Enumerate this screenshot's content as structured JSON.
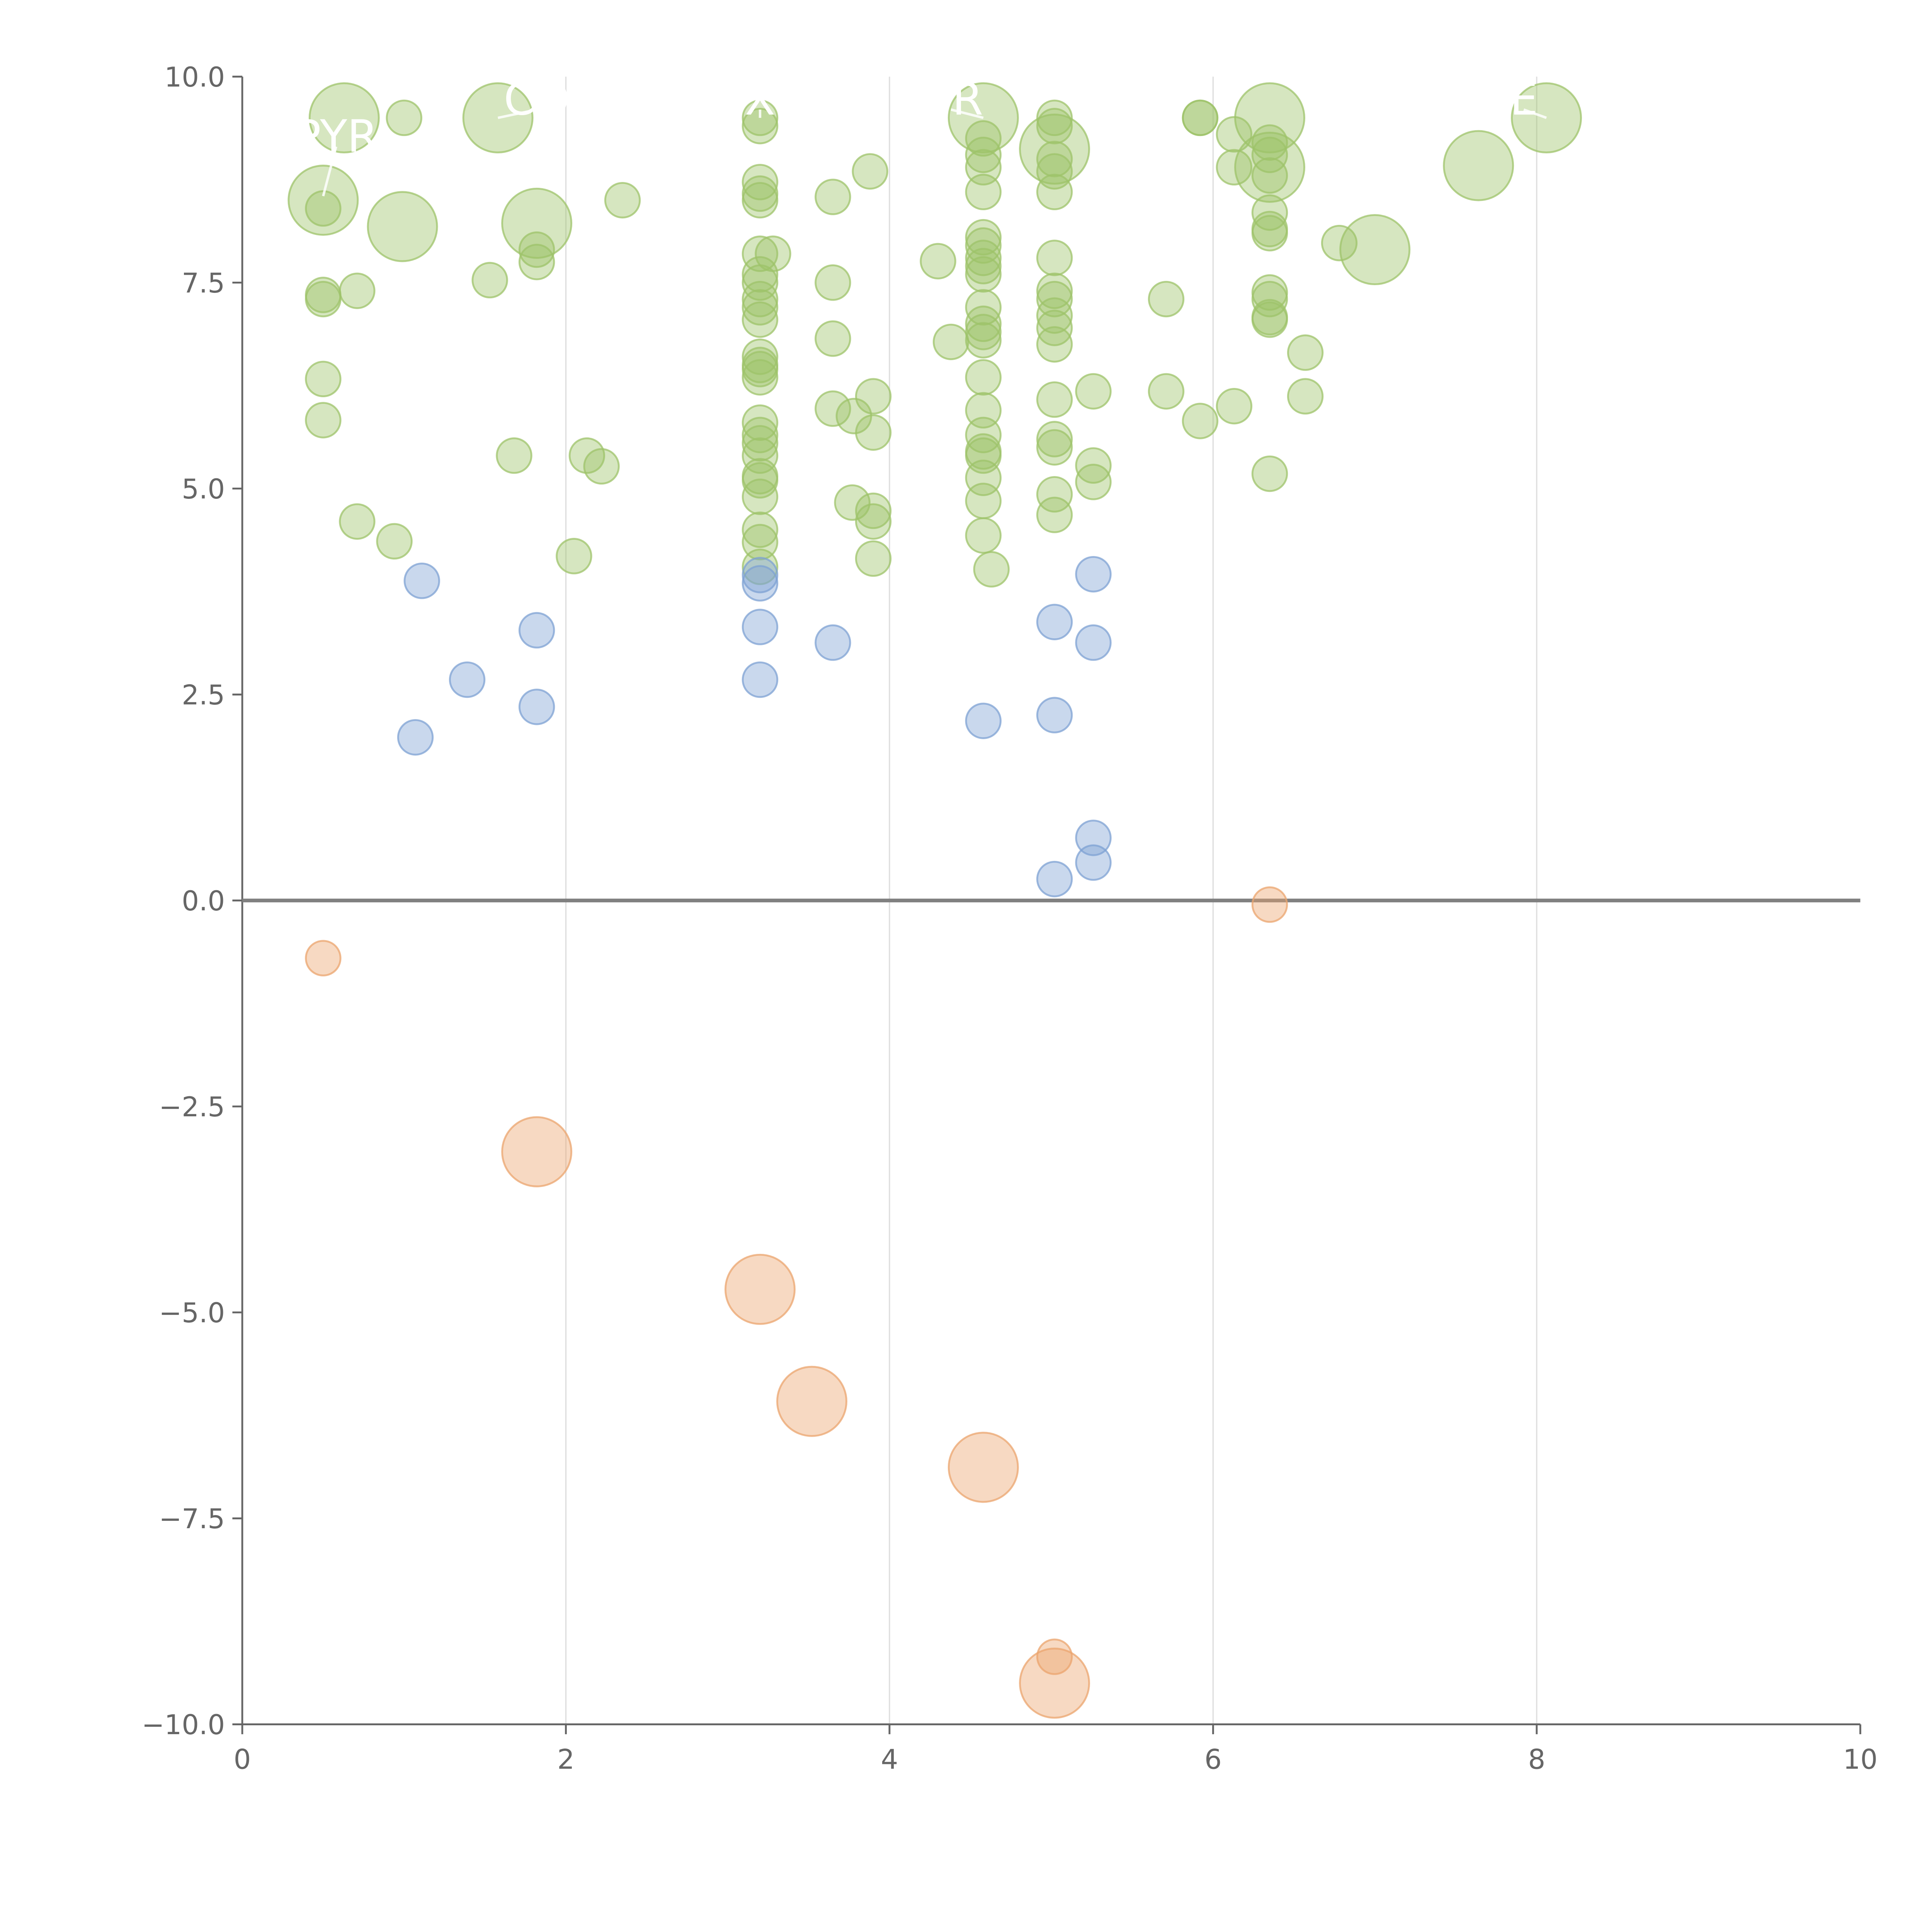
{
  "colors": {
    "positive_high": "#9dc36a",
    "positive_low": "#7ea1d3",
    "negative": "#eba46e",
    "axis": "#666666",
    "grid": "#dddddd",
    "zero_line": "#808080",
    "label": "#ffffff"
  },
  "chart_data": {
    "type": "scatter",
    "title": "",
    "xlabel": "",
    "ylabel": "",
    "xlim": [
      0,
      10
    ],
    "ylim": [
      -10,
      10
    ],
    "x_ticks": [
      "0",
      "2",
      "4",
      "6",
      "8",
      "10"
    ],
    "y_ticks": [
      "−10.0",
      "−7.5",
      "−5.0",
      "−2.5",
      "0.0",
      "2.5",
      "5.0",
      "7.5",
      "10.0"
    ],
    "x_tick_values": [
      0,
      2,
      4,
      6,
      8,
      10
    ],
    "y_tick_values": [
      -10,
      -7.5,
      -5,
      -2.5,
      0,
      2.5,
      5,
      7.5,
      10
    ],
    "vertical_grid": [
      2,
      4,
      6,
      8
    ],
    "horizontal_reference_line": 0,
    "legend": "none",
    "series": [
      {
        "color_role": "positive_high",
        "points": [
          {
            "x": 0.63,
            "y": 9.5,
            "s": 3
          },
          {
            "x": 1.0,
            "y": 9.5,
            "s": 1
          },
          {
            "x": 1.58,
            "y": 9.5,
            "s": 3
          },
          {
            "x": 3.2,
            "y": 9.5,
            "s": 1
          },
          {
            "x": 3.2,
            "y": 9.4,
            "s": 1
          },
          {
            "x": 4.58,
            "y": 9.5,
            "s": 3
          },
          {
            "x": 5.02,
            "y": 9.5,
            "s": 1
          },
          {
            "x": 5.02,
            "y": 9.4,
            "s": 1
          },
          {
            "x": 5.92,
            "y": 9.5,
            "s": 1
          },
          {
            "x": 5.92,
            "y": 9.5,
            "s": 1
          },
          {
            "x": 6.35,
            "y": 9.5,
            "s": 3
          },
          {
            "x": 8.06,
            "y": 9.5,
            "s": 3
          },
          {
            "x": 0.5,
            "y": 8.5,
            "s": 3
          },
          {
            "x": 0.5,
            "y": 8.4,
            "s": 1
          },
          {
            "x": 0.99,
            "y": 8.18,
            "s": 3
          },
          {
            "x": 1.82,
            "y": 8.22,
            "s": 3
          },
          {
            "x": 1.82,
            "y": 7.9,
            "s": 1
          },
          {
            "x": 1.82,
            "y": 7.75,
            "s": 1
          },
          {
            "x": 2.35,
            "y": 8.5,
            "s": 1
          },
          {
            "x": 3.2,
            "y": 8.72,
            "s": 1
          },
          {
            "x": 3.2,
            "y": 8.58,
            "s": 1
          },
          {
            "x": 3.2,
            "y": 8.5,
            "s": 1
          },
          {
            "x": 3.65,
            "y": 8.54,
            "s": 1
          },
          {
            "x": 3.88,
            "y": 8.85,
            "s": 1
          },
          {
            "x": 4.58,
            "y": 9.25,
            "s": 1
          },
          {
            "x": 4.58,
            "y": 9.05,
            "s": 1
          },
          {
            "x": 4.58,
            "y": 8.9,
            "s": 1
          },
          {
            "x": 4.58,
            "y": 8.6,
            "s": 1
          },
          {
            "x": 5.02,
            "y": 9.12,
            "s": 3
          },
          {
            "x": 5.02,
            "y": 9.0,
            "s": 1
          },
          {
            "x": 5.02,
            "y": 8.85,
            "s": 1
          },
          {
            "x": 5.02,
            "y": 8.6,
            "s": 1
          },
          {
            "x": 6.13,
            "y": 9.3,
            "s": 1
          },
          {
            "x": 6.13,
            "y": 8.9,
            "s": 1
          },
          {
            "x": 6.35,
            "y": 9.2,
            "s": 1
          },
          {
            "x": 6.35,
            "y": 9.05,
            "s": 1
          },
          {
            "x": 6.35,
            "y": 8.9,
            "s": 3
          },
          {
            "x": 6.35,
            "y": 8.8,
            "s": 1
          },
          {
            "x": 6.35,
            "y": 8.35,
            "s": 1
          },
          {
            "x": 6.35,
            "y": 8.15,
            "s": 1
          },
          {
            "x": 6.35,
            "y": 8.1,
            "s": 1
          },
          {
            "x": 7.64,
            "y": 8.92,
            "s": 3
          },
          {
            "x": 6.78,
            "y": 7.98,
            "s": 1
          },
          {
            "x": 7.0,
            "y": 7.9,
            "s": 3
          },
          {
            "x": 0.5,
            "y": 7.35,
            "s": 1
          },
          {
            "x": 0.5,
            "y": 7.3,
            "s": 1
          },
          {
            "x": 0.71,
            "y": 7.4,
            "s": 1
          },
          {
            "x": 1.53,
            "y": 7.53,
            "s": 1
          },
          {
            "x": 3.2,
            "y": 7.85,
            "s": 1
          },
          {
            "x": 3.28,
            "y": 7.85,
            "s": 1
          },
          {
            "x": 3.2,
            "y": 7.6,
            "s": 1
          },
          {
            "x": 3.2,
            "y": 7.5,
            "s": 1
          },
          {
            "x": 3.2,
            "y": 7.3,
            "s": 1
          },
          {
            "x": 3.2,
            "y": 7.2,
            "s": 1
          },
          {
            "x": 3.2,
            "y": 7.05,
            "s": 1
          },
          {
            "x": 3.2,
            "y": 6.6,
            "s": 1
          },
          {
            "x": 3.2,
            "y": 6.5,
            "s": 1
          },
          {
            "x": 3.2,
            "y": 6.45,
            "s": 1
          },
          {
            "x": 3.2,
            "y": 6.35,
            "s": 1
          },
          {
            "x": 3.65,
            "y": 7.5,
            "s": 1
          },
          {
            "x": 3.65,
            "y": 6.82,
            "s": 1
          },
          {
            "x": 4.3,
            "y": 7.76,
            "s": 1
          },
          {
            "x": 4.58,
            "y": 8.05,
            "s": 1
          },
          {
            "x": 4.58,
            "y": 7.95,
            "s": 1
          },
          {
            "x": 4.58,
            "y": 7.8,
            "s": 1
          },
          {
            "x": 4.58,
            "y": 7.7,
            "s": 1
          },
          {
            "x": 4.58,
            "y": 7.6,
            "s": 1
          },
          {
            "x": 4.58,
            "y": 7.2,
            "s": 1
          },
          {
            "x": 4.58,
            "y": 7.0,
            "s": 1
          },
          {
            "x": 4.58,
            "y": 6.9,
            "s": 1
          },
          {
            "x": 4.58,
            "y": 6.8,
            "s": 1
          },
          {
            "x": 4.58,
            "y": 6.35,
            "s": 1
          },
          {
            "x": 4.38,
            "y": 6.78,
            "s": 1
          },
          {
            "x": 5.02,
            "y": 7.8,
            "s": 1
          },
          {
            "x": 5.02,
            "y": 7.4,
            "s": 1
          },
          {
            "x": 5.02,
            "y": 7.3,
            "s": 1
          },
          {
            "x": 5.02,
            "y": 7.1,
            "s": 1
          },
          {
            "x": 5.02,
            "y": 6.95,
            "s": 1
          },
          {
            "x": 5.02,
            "y": 6.75,
            "s": 1
          },
          {
            "x": 5.71,
            "y": 7.3,
            "s": 1
          },
          {
            "x": 6.35,
            "y": 7.38,
            "s": 1
          },
          {
            "x": 6.35,
            "y": 7.3,
            "s": 1
          },
          {
            "x": 6.35,
            "y": 7.08,
            "s": 1
          },
          {
            "x": 6.35,
            "y": 7.05,
            "s": 1
          },
          {
            "x": 6.57,
            "y": 6.65,
            "s": 1
          },
          {
            "x": 0.5,
            "y": 6.33,
            "s": 1
          },
          {
            "x": 0.5,
            "y": 5.83,
            "s": 1
          },
          {
            "x": 1.68,
            "y": 5.4,
            "s": 1
          },
          {
            "x": 2.13,
            "y": 5.4,
            "s": 1
          },
          {
            "x": 2.22,
            "y": 5.27,
            "s": 1
          },
          {
            "x": 3.2,
            "y": 5.8,
            "s": 1
          },
          {
            "x": 3.2,
            "y": 5.65,
            "s": 1
          },
          {
            "x": 3.2,
            "y": 5.55,
            "s": 1
          },
          {
            "x": 3.2,
            "y": 5.4,
            "s": 1
          },
          {
            "x": 3.2,
            "y": 5.15,
            "s": 1
          },
          {
            "x": 3.2,
            "y": 5.1,
            "s": 1
          },
          {
            "x": 3.2,
            "y": 4.9,
            "s": 1
          },
          {
            "x": 3.2,
            "y": 4.5,
            "s": 1
          },
          {
            "x": 3.2,
            "y": 4.35,
            "s": 1
          },
          {
            "x": 3.2,
            "y": 4.05,
            "s": 1
          },
          {
            "x": 3.65,
            "y": 5.97,
            "s": 1
          },
          {
            "x": 3.78,
            "y": 5.88,
            "s": 1
          },
          {
            "x": 3.9,
            "y": 6.12,
            "s": 1
          },
          {
            "x": 3.9,
            "y": 5.68,
            "s": 1
          },
          {
            "x": 3.77,
            "y": 4.83,
            "s": 1
          },
          {
            "x": 3.9,
            "y": 4.73,
            "s": 1
          },
          {
            "x": 3.9,
            "y": 4.6,
            "s": 1
          },
          {
            "x": 3.9,
            "y": 4.15,
            "s": 1
          },
          {
            "x": 4.58,
            "y": 5.95,
            "s": 1
          },
          {
            "x": 4.58,
            "y": 5.65,
            "s": 1
          },
          {
            "x": 4.58,
            "y": 5.45,
            "s": 1
          },
          {
            "x": 4.58,
            "y": 5.4,
            "s": 1
          },
          {
            "x": 4.58,
            "y": 5.13,
            "s": 1
          },
          {
            "x": 4.58,
            "y": 4.85,
            "s": 1
          },
          {
            "x": 4.58,
            "y": 4.43,
            "s": 1
          },
          {
            "x": 4.63,
            "y": 4.02,
            "s": 1
          },
          {
            "x": 5.02,
            "y": 6.08,
            "s": 1
          },
          {
            "x": 5.02,
            "y": 5.6,
            "s": 1
          },
          {
            "x": 5.02,
            "y": 5.5,
            "s": 1
          },
          {
            "x": 5.02,
            "y": 4.93,
            "s": 1
          },
          {
            "x": 5.02,
            "y": 4.68,
            "s": 1
          },
          {
            "x": 5.26,
            "y": 6.18,
            "s": 1
          },
          {
            "x": 5.26,
            "y": 5.28,
            "s": 1
          },
          {
            "x": 5.26,
            "y": 5.08,
            "s": 1
          },
          {
            "x": 5.71,
            "y": 6.18,
            "s": 1
          },
          {
            "x": 5.92,
            "y": 5.82,
            "s": 1
          },
          {
            "x": 6.13,
            "y": 6.0,
            "s": 1
          },
          {
            "x": 6.57,
            "y": 6.12,
            "s": 1
          },
          {
            "x": 6.35,
            "y": 5.18,
            "s": 1
          },
          {
            "x": 0.71,
            "y": 4.6,
            "s": 1
          },
          {
            "x": 0.94,
            "y": 4.36,
            "s": 1
          },
          {
            "x": 2.05,
            "y": 4.18,
            "s": 1
          }
        ]
      },
      {
        "color_role": "positive_low",
        "points": [
          {
            "x": 1.11,
            "y": 3.88,
            "s": 1
          },
          {
            "x": 1.39,
            "y": 2.68,
            "s": 1
          },
          {
            "x": 1.07,
            "y": 1.98,
            "s": 1
          },
          {
            "x": 1.82,
            "y": 3.28,
            "s": 1
          },
          {
            "x": 1.82,
            "y": 2.35,
            "s": 1
          },
          {
            "x": 3.2,
            "y": 3.95,
            "s": 1
          },
          {
            "x": 3.2,
            "y": 3.85,
            "s": 1
          },
          {
            "x": 3.2,
            "y": 3.32,
            "s": 1
          },
          {
            "x": 3.2,
            "y": 2.68,
            "s": 1
          },
          {
            "x": 3.65,
            "y": 3.13,
            "s": 1
          },
          {
            "x": 4.58,
            "y": 2.18,
            "s": 1
          },
          {
            "x": 5.02,
            "y": 3.38,
            "s": 1
          },
          {
            "x": 5.02,
            "y": 2.25,
            "s": 1
          },
          {
            "x": 5.26,
            "y": 3.96,
            "s": 1
          },
          {
            "x": 5.26,
            "y": 3.13,
            "s": 1
          },
          {
            "x": 5.26,
            "y": 0.76,
            "s": 1
          },
          {
            "x": 5.26,
            "y": 0.46,
            "s": 1
          },
          {
            "x": 5.02,
            "y": 0.26,
            "s": 1
          }
        ]
      },
      {
        "color_role": "negative",
        "points": [
          {
            "x": 0.5,
            "y": -0.7,
            "s": 1
          },
          {
            "x": 6.35,
            "y": -0.05,
            "s": 1
          },
          {
            "x": 1.82,
            "y": -3.05,
            "s": 3
          },
          {
            "x": 3.2,
            "y": -4.72,
            "s": 3
          },
          {
            "x": 3.52,
            "y": -6.08,
            "s": 3
          },
          {
            "x": 4.58,
            "y": -6.88,
            "s": 3
          },
          {
            "x": 5.02,
            "y": -9.18,
            "s": 1
          },
          {
            "x": 5.02,
            "y": -9.5,
            "s": 3
          }
        ]
      }
    ],
    "annotations": [
      {
        "text": "PYR",
        "x": 0.58,
        "y": 9.3,
        "px": 0.5,
        "py": 8.55
      },
      {
        "text": "CO",
        "x": 1.82,
        "y": 9.75,
        "px": 1.58,
        "py": 9.5
      },
      {
        "text": "X",
        "x": 3.2,
        "y": 9.75,
        "px": 3.2,
        "py": 9.5
      },
      {
        "text": "HR",
        "x": 4.38,
        "y": 9.75,
        "px": 4.58,
        "py": 9.5
      },
      {
        "text": "E",
        "x": 7.92,
        "y": 9.75,
        "px": 8.06,
        "py": 9.5
      }
    ]
  }
}
